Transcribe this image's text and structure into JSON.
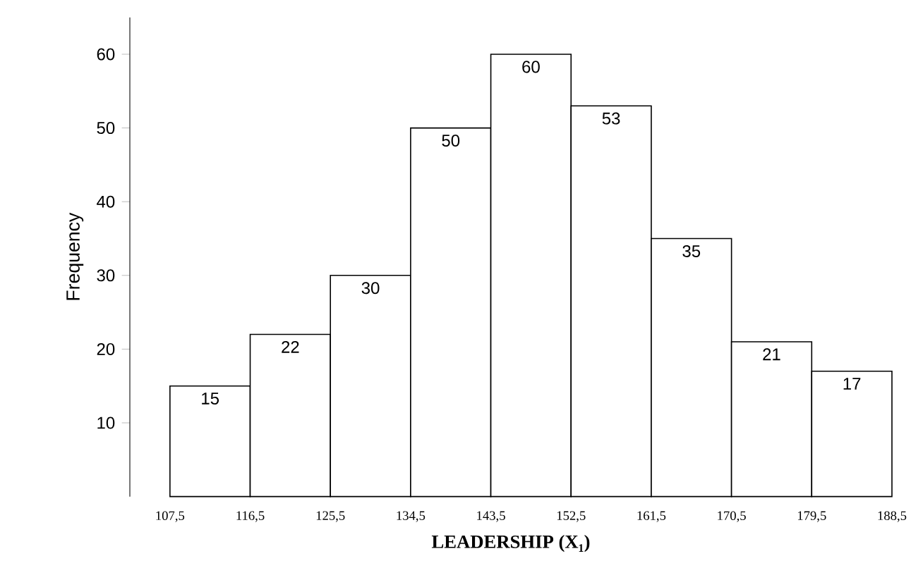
{
  "chart_data": {
    "type": "histogram",
    "xlabel": "LEADERSHIP (X₁)",
    "ylabel": "Frequency",
    "bins": [
      107.5,
      116.5,
      125.5,
      134.5,
      143.5,
      152.5,
      161.5,
      170.5,
      179.5,
      188.5
    ],
    "values": [
      15,
      22,
      30,
      50,
      60,
      53,
      35,
      21,
      17
    ],
    "data_labels": true,
    "color": "#ffffff",
    "xlim": [
      103,
      188.5
    ],
    "ylim": [
      0,
      65
    ],
    "xticks": [
      {
        "value": 107.5,
        "label": "107,5"
      },
      {
        "value": 116.5,
        "label": "116,5"
      },
      {
        "value": 125.5,
        "label": "125,5"
      },
      {
        "value": 134.5,
        "label": "134,5"
      },
      {
        "value": 143.5,
        "label": "143,5"
      },
      {
        "value": 152.5,
        "label": "152,5"
      },
      {
        "value": 161.5,
        "label": "161,5"
      },
      {
        "value": 170.5,
        "label": "170,5"
      },
      {
        "value": 179.5,
        "label": "179,5"
      },
      {
        "value": 188.5,
        "label": "188,5"
      }
    ],
    "yticks": [
      10,
      20,
      30,
      40,
      50,
      60
    ]
  }
}
